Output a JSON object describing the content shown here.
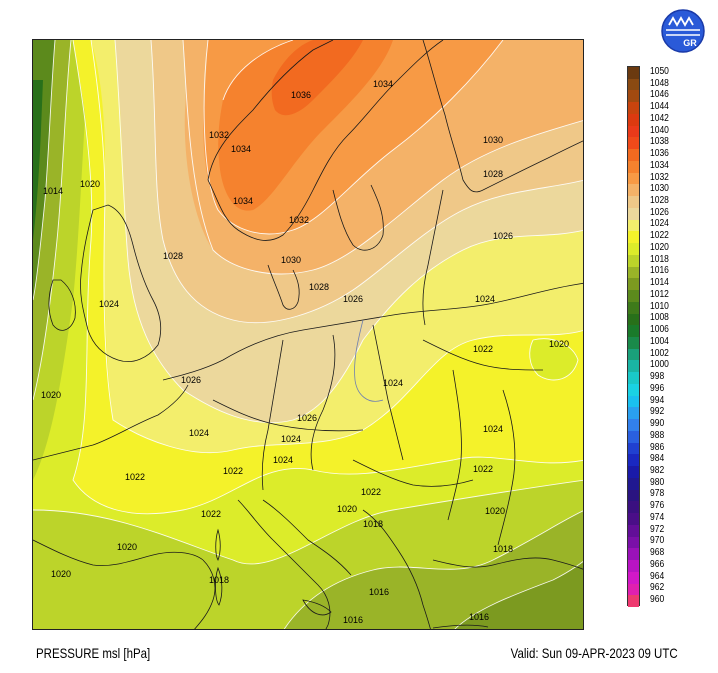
{
  "title": "PRESSURE msl [hPa]",
  "valid": "Valid: Sun 09-APR-2023 09 UTC",
  "logo_text": "GR",
  "colorbar": [
    {
      "value": "1050",
      "color": "#6b3a10"
    },
    {
      "value": "1048",
      "color": "#8a4a12"
    },
    {
      "value": "1046",
      "color": "#a24a10"
    },
    {
      "value": "1044",
      "color": "#c8440e"
    },
    {
      "value": "1042",
      "color": "#dc3a10"
    },
    {
      "value": "1040",
      "color": "#ea3a1a"
    },
    {
      "value": "1038",
      "color": "#f04a1a"
    },
    {
      "value": "1036",
      "color": "#f26a20"
    },
    {
      "value": "1034",
      "color": "#f5822e"
    },
    {
      "value": "1032",
      "color": "#f79a45"
    },
    {
      "value": "1030",
      "color": "#f4b268"
    },
    {
      "value": "1028",
      "color": "#efc888"
    },
    {
      "value": "1026",
      "color": "#ecd89c"
    },
    {
      "value": "1024",
      "color": "#f3ee6c"
    },
    {
      "value": "1022",
      "color": "#f4f22a"
    },
    {
      "value": "1020",
      "color": "#dcec2a"
    },
    {
      "value": "1018",
      "color": "#bcd42a"
    },
    {
      "value": "1016",
      "color": "#9ab428"
    },
    {
      "value": "1014",
      "color": "#7c9a20"
    },
    {
      "value": "1012",
      "color": "#5c8a1c"
    },
    {
      "value": "1010",
      "color": "#3e7a1a"
    },
    {
      "value": "1008",
      "color": "#28701a"
    },
    {
      "value": "1006",
      "color": "#1a7a2a"
    },
    {
      "value": "1004",
      "color": "#1a8a4a"
    },
    {
      "value": "1002",
      "color": "#1aa07a"
    },
    {
      "value": "1000",
      "color": "#1ab4a4"
    },
    {
      "value": "998",
      "color": "#1ac8c8"
    },
    {
      "value": "996",
      "color": "#1ad2e4"
    },
    {
      "value": "994",
      "color": "#1ac0f0"
    },
    {
      "value": "992",
      "color": "#2aa0f0"
    },
    {
      "value": "990",
      "color": "#3280ec"
    },
    {
      "value": "988",
      "color": "#2a60e0"
    },
    {
      "value": "986",
      "color": "#2040d0"
    },
    {
      "value": "984",
      "color": "#1a28c0"
    },
    {
      "value": "982",
      "color": "#1a1aa8"
    },
    {
      "value": "980",
      "color": "#201890"
    },
    {
      "value": "978",
      "color": "#2a1480"
    },
    {
      "value": "976",
      "color": "#3a1080"
    },
    {
      "value": "974",
      "color": "#4a0e88"
    },
    {
      "value": "972",
      "color": "#620e98"
    },
    {
      "value": "970",
      "color": "#7a10a8"
    },
    {
      "value": "968",
      "color": "#9a12b8"
    },
    {
      "value": "966",
      "color": "#b814c4"
    },
    {
      "value": "964",
      "color": "#d218c8"
    },
    {
      "value": "962",
      "color": "#e020b0"
    },
    {
      "value": "960",
      "color": "#ee3a70"
    }
  ],
  "isobar_labels": [
    "1036",
    "1034",
    "1032",
    "1034",
    "1034",
    "1032",
    "1030",
    "1028",
    "1028",
    "1030",
    "1026",
    "1028",
    "1026",
    "1024",
    "1024",
    "1022",
    "1020",
    "1020",
    "1014",
    "1020",
    "1024",
    "1026",
    "1024",
    "1026",
    "1024",
    "1024",
    "1022",
    "1022",
    "1022",
    "1024",
    "1022",
    "1020",
    "1018",
    "1022",
    "1020",
    "1020",
    "1018",
    "1020",
    "1016",
    "1016",
    "1016",
    "1018"
  ]
}
